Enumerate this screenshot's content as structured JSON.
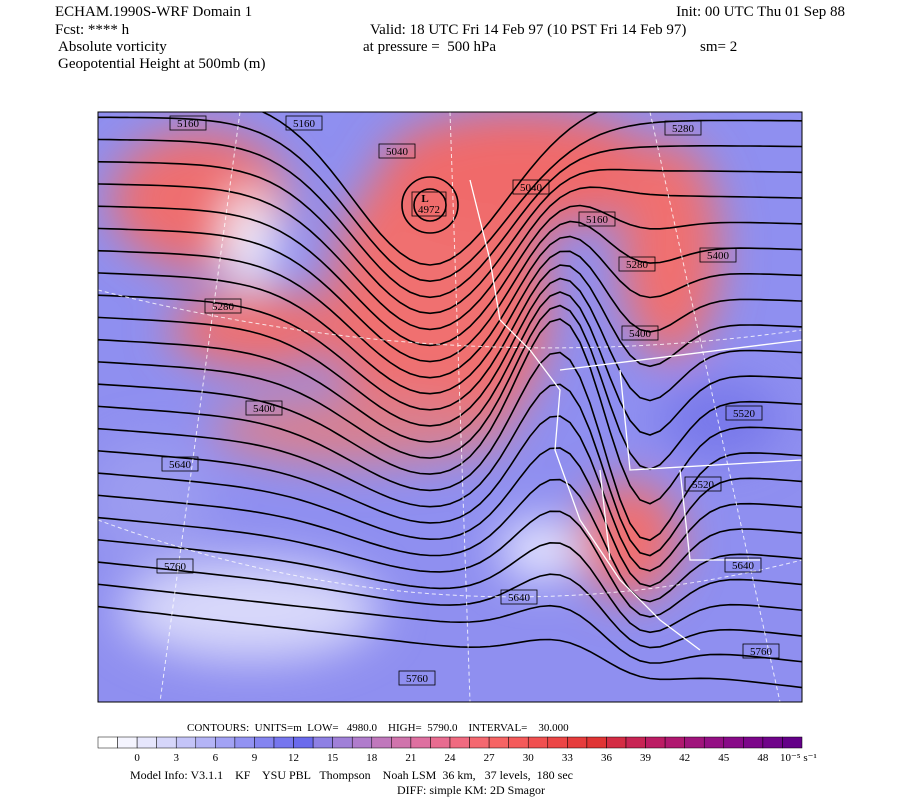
{
  "header": {
    "title": "ECHAM.1990S-WRF Domain 1",
    "init": "Init: 00 UTC Thu 01 Sep 88",
    "fcst": "Fcst: **** h",
    "valid": "Valid: 18 UTC Fri 14 Feb 97 (10 PST Fri 14 Feb 97)",
    "field1": "Absolute vorticity",
    "pressure": "at pressure =  500 hPa",
    "smooth": "sm= 2",
    "field2": "Geopotential Height at 500mb (m)"
  },
  "map": {
    "contour_labels": [
      5160,
      5160,
      5040,
      5280,
      5040,
      5160,
      5280,
      5400,
      5280,
      5400,
      5400,
      5520,
      5520,
      5640,
      5640,
      5760,
      5640,
      5760,
      5760
    ],
    "low": {
      "label": "L",
      "value": 4972
    }
  },
  "contour_info": "CONTOURS:  UNITS=m  LOW=   4980.0    HIGH=  5790.0    INTERVAL=    30.000",
  "colorbar": {
    "ticks": [
      0,
      3,
      6,
      9,
      12,
      15,
      18,
      21,
      24,
      27,
      30,
      33,
      36,
      39,
      42,
      45,
      48
    ],
    "unit": "10⁻⁵ s⁻¹"
  },
  "footer": {
    "model_info": "Model Info: V3.1.1    KF    YSU PBL   Thompson    Noah LSM  36 km,   37 levels,  180 sec",
    "diff": "DIFF: simple KM: 2D Smagor"
  }
}
